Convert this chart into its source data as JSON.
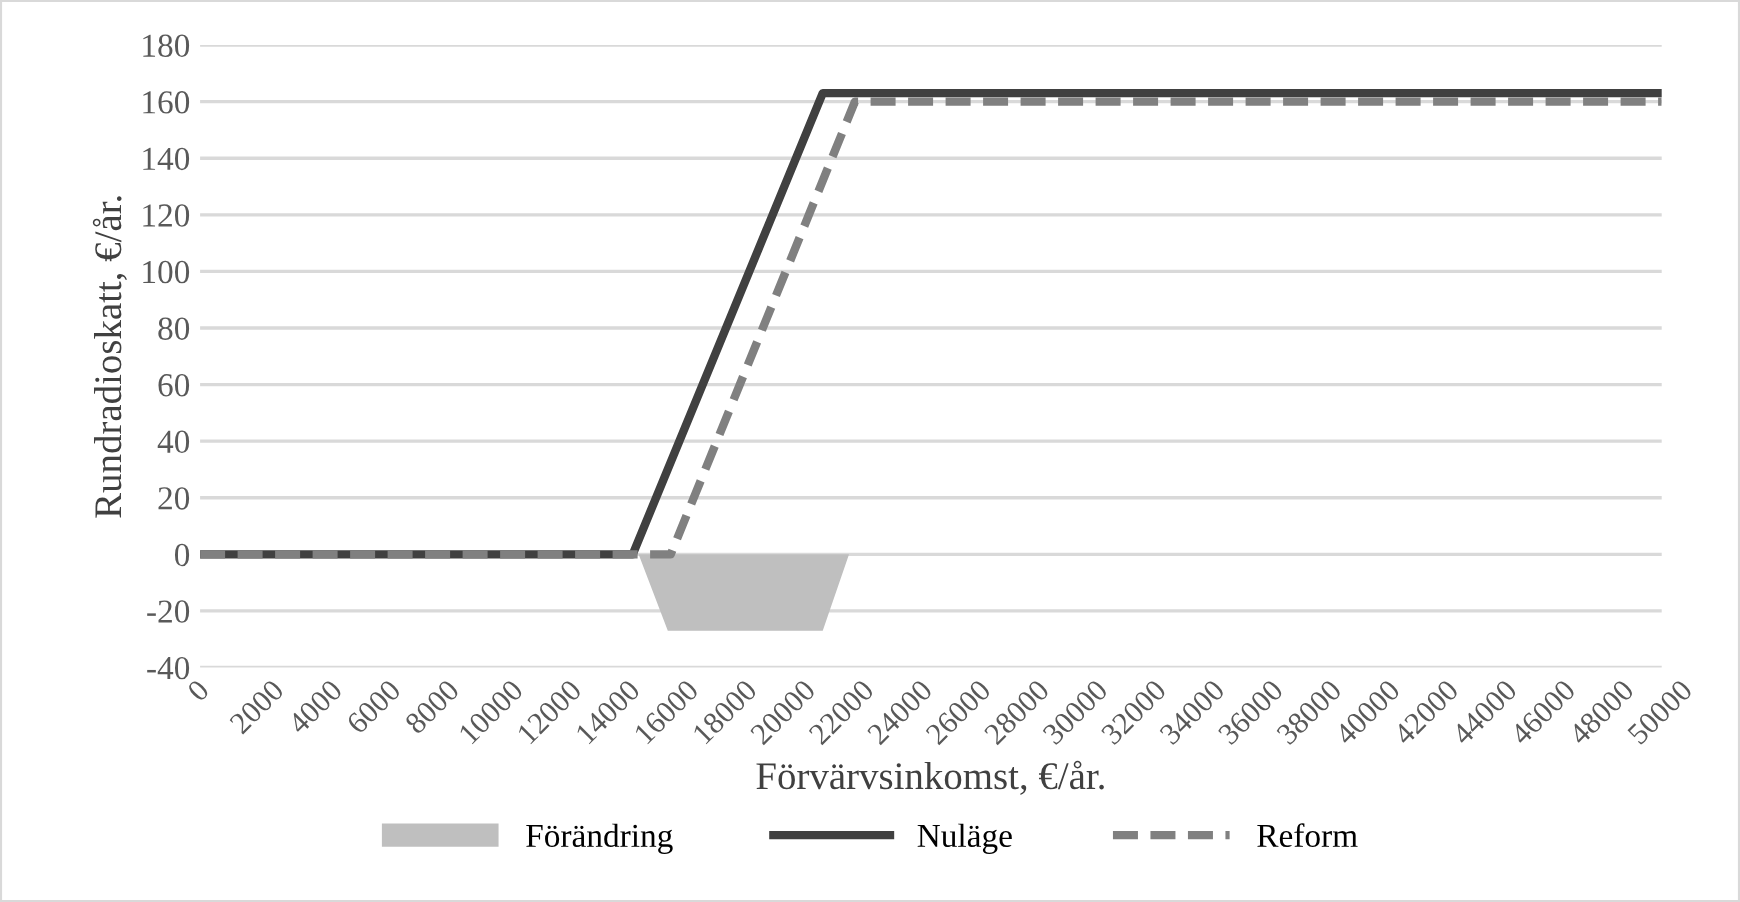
{
  "chart_data": {
    "type": "line",
    "xlabel": "Förvärvsinkomst, €/år.",
    "ylabel": "Rundradioskatt, €/år.",
    "xlim": [
      0,
      50000
    ],
    "xticks": [
      0,
      2000,
      4000,
      6000,
      8000,
      10000,
      12000,
      14000,
      16000,
      18000,
      20000,
      22000,
      24000,
      26000,
      28000,
      30000,
      32000,
      34000,
      36000,
      38000,
      40000,
      42000,
      44000,
      46000,
      48000,
      50000
    ],
    "ylim": [
      -40,
      180
    ],
    "yticks": [
      -40,
      -20,
      0,
      20,
      40,
      60,
      80,
      100,
      120,
      140,
      160,
      180
    ],
    "grid": "y",
    "legend": "bottom",
    "series": [
      {
        "name": "Förändring",
        "type": "area",
        "color": "#bfbfbf",
        "x": [
          0,
          15000,
          16000,
          21300,
          22200,
          50000
        ],
        "values": [
          0,
          0,
          -27,
          -27,
          0,
          0
        ]
      },
      {
        "name": "Nuläge",
        "color": "#404040",
        "line_style": "solid",
        "x": [
          0,
          14800,
          21300,
          50000
        ],
        "values": [
          0,
          0,
          163,
          163
        ]
      },
      {
        "name": "Reform",
        "color": "#808080",
        "line_style": "dashed",
        "x": [
          0,
          16100,
          22400,
          50000
        ],
        "values": [
          0,
          0,
          160,
          160
        ]
      }
    ]
  }
}
